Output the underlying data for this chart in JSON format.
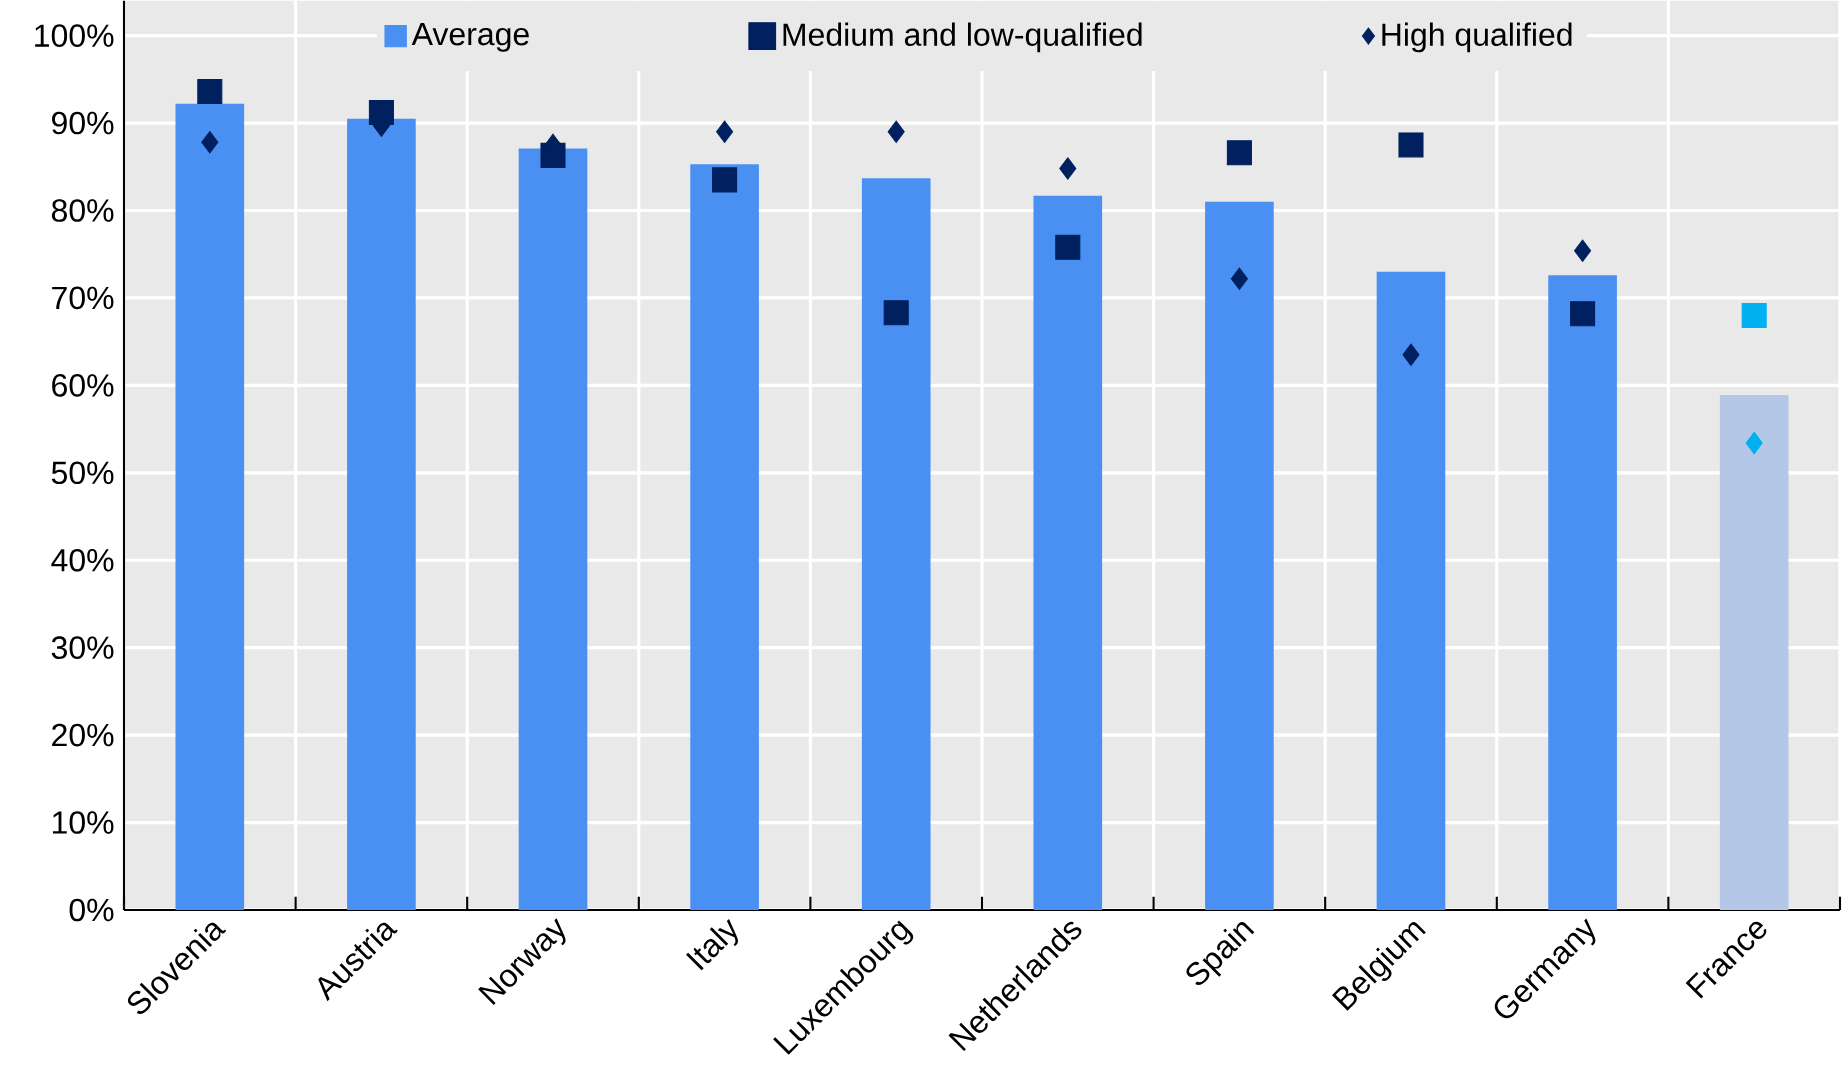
{
  "chart_data": {
    "type": "bar",
    "categories": [
      "Slovenia",
      "Austria",
      "Norway",
      "Italy",
      "Luxembourg",
      "Netherlands",
      "Spain",
      "Belgium",
      "Germany",
      "France"
    ],
    "series": [
      {
        "name": "Average",
        "color": "#4a90f2",
        "colors": [
          "#4a90f2",
          "#4a90f2",
          "#4a90f2",
          "#4a90f2",
          "#4a90f2",
          "#4a90f2",
          "#4a90f2",
          "#4a90f2",
          "#4a90f2",
          "#b4c7e7"
        ],
        "values": [
          92.2,
          90.5,
          87.1,
          85.3,
          83.7,
          81.7,
          81.0,
          73.0,
          72.6,
          58.9
        ]
      },
      {
        "name": "Medium and low-qualified",
        "type": "scatter",
        "marker": "square",
        "color": "#002060",
        "colors": [
          "#002060",
          "#002060",
          "#002060",
          "#002060",
          "#002060",
          "#002060",
          "#002060",
          "#002060",
          "#002060",
          "#00b0f0"
        ],
        "values": [
          93.6,
          91.2,
          86.3,
          83.5,
          68.3,
          75.8,
          86.6,
          87.5,
          68.2,
          68.0
        ]
      },
      {
        "name": "High qualified",
        "type": "scatter",
        "marker": "diamond",
        "color": "#002060",
        "colors": [
          "#002060",
          "#002060",
          "#002060",
          "#002060",
          "#002060",
          "#002060",
          "#002060",
          "#002060",
          "#002060",
          "#00b0f0"
        ],
        "values": [
          87.8,
          89.7,
          87.5,
          89.0,
          89.0,
          84.8,
          72.2,
          63.5,
          75.4,
          53.4
        ]
      }
    ],
    "ylim": [
      0,
      104
    ],
    "yticks": [
      {
        "value": 0,
        "label": "0%"
      },
      {
        "value": 10,
        "label": "10%"
      },
      {
        "value": 20,
        "label": "20%"
      },
      {
        "value": 30,
        "label": "30%"
      },
      {
        "value": 40,
        "label": "40%"
      },
      {
        "value": 50,
        "label": "50%"
      },
      {
        "value": 60,
        "label": "60%"
      },
      {
        "value": 70,
        "label": "70%"
      },
      {
        "value": 80,
        "label": "80%"
      },
      {
        "value": 90,
        "label": "90%"
      },
      {
        "value": 100,
        "label": "100%"
      }
    ],
    "grid": true,
    "legend": "top"
  }
}
